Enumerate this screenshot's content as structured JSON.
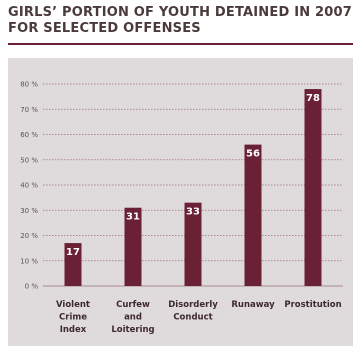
{
  "title": "GIRLS’ PORTION OF YOUTH DETAINED IN 2007 FOR SELECTED OFFENSES",
  "colors": {
    "bar": "#6b2135",
    "background": "#dfdadb",
    "grid": "#9a6f7b",
    "rule": "#6b2135"
  },
  "chart_data": {
    "type": "bar",
    "title": "GIRLS’ PORTION OF YOUTH DETAINED IN 2007 FOR SELECTED OFFENSES",
    "categories": [
      [
        "Violent",
        "Crime",
        "Index"
      ],
      [
        "Curfew",
        "and",
        "Loitering"
      ],
      [
        "Disorderly",
        "Conduct"
      ],
      [
        "Runaway"
      ],
      [
        "Prostitution"
      ]
    ],
    "values": [
      17,
      31,
      33,
      56,
      78
    ],
    "data_labels": [
      "17",
      "31",
      "33",
      "56",
      "78"
    ],
    "ylim": [
      0,
      80
    ],
    "yticks": [
      0,
      10,
      20,
      30,
      40,
      50,
      60,
      70,
      80
    ],
    "ytick_labels": [
      "0 %",
      "10 %",
      "20 %",
      "30 %",
      "40 %",
      "50 %",
      "60 %",
      "70 %",
      "80 %"
    ],
    "grid": true,
    "xlabel": "",
    "ylabel": ""
  }
}
